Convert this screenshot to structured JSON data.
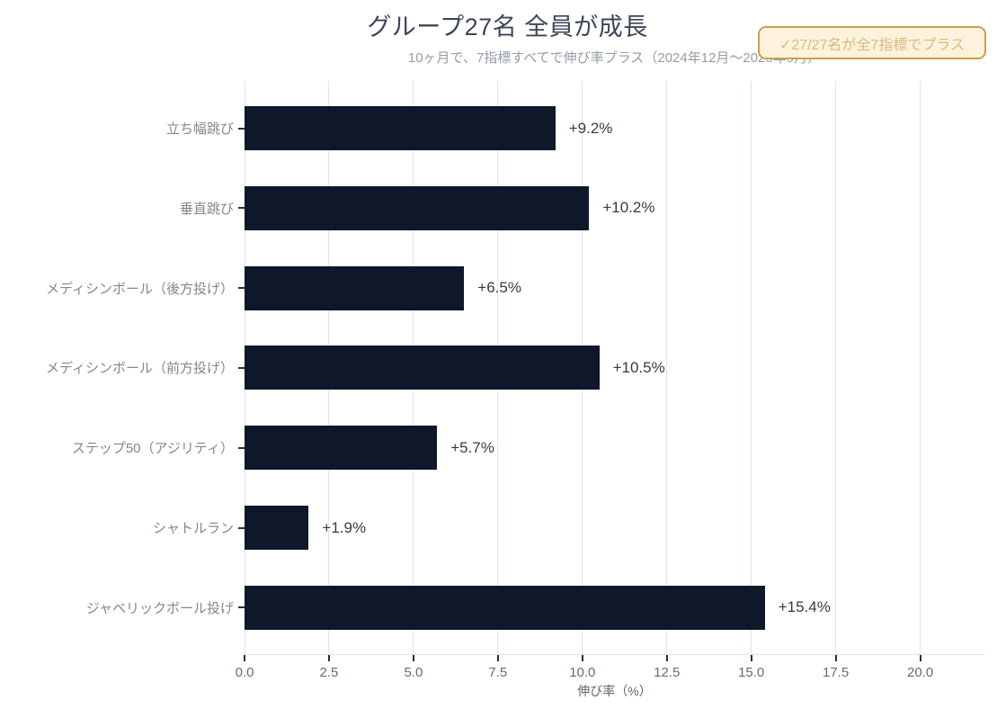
{
  "header": {
    "title": "グループ27名 全員が成長",
    "subtitle": "10ヶ月で、7指標すべてで伸び率プラス（2024年12月〜2025年9月）",
    "badge_text": "✓27/27名が全7指標でプラス"
  },
  "chart_data": {
    "type": "bar",
    "orientation": "horizontal",
    "title": "グループ27名 全員が成長",
    "subtitle": "10ヶ月で、7指標すべてで伸び率プラス（2024年12月〜2025年9月）",
    "annotation_badge": "✓27/27名が全7指標でプラス",
    "categories": [
      "立ち幅跳び",
      "垂直跳び",
      "メディシンボール（後方投げ）",
      "メディシンボール（前方投げ）",
      "ステップ50（アジリティ）",
      "シャトルラン",
      "ジャベリックボール投げ"
    ],
    "values": [
      9.2,
      10.2,
      6.5,
      10.5,
      5.7,
      1.9,
      15.4
    ],
    "value_labels": [
      "+9.2%",
      "+10.2%",
      "+6.5%",
      "+10.5%",
      "+5.7%",
      "+1.9%",
      "+15.4%"
    ],
    "xlabel": "伸び率（%）",
    "ylabel": "",
    "x_ticks": [
      0.0,
      2.5,
      5.0,
      7.5,
      10.0,
      12.5,
      15.0,
      17.5,
      20.0
    ],
    "x_tick_labels": [
      "0.0",
      "2.5",
      "5.0",
      "7.5",
      "10.0",
      "12.5",
      "15.0",
      "17.5",
      "20.0"
    ],
    "xlim": [
      0,
      21.9
    ],
    "grid": "vertical-only",
    "legend": "none",
    "colors": {
      "bar": "#0f172a",
      "grid": "#dde4ee",
      "title_text": "#3e4656",
      "subtitle_text": "#959ca6",
      "category_text": "#7f8793",
      "value_text": "#343b49",
      "tick_label_text": "#646c78",
      "tick_mark": "#262f3d",
      "axis_label_text": "#5f6670",
      "badge_border": "#c8a245",
      "badge_background": "#fdf3dc",
      "badge_text": "#d8bb80",
      "background": "#ffffff"
    }
  }
}
